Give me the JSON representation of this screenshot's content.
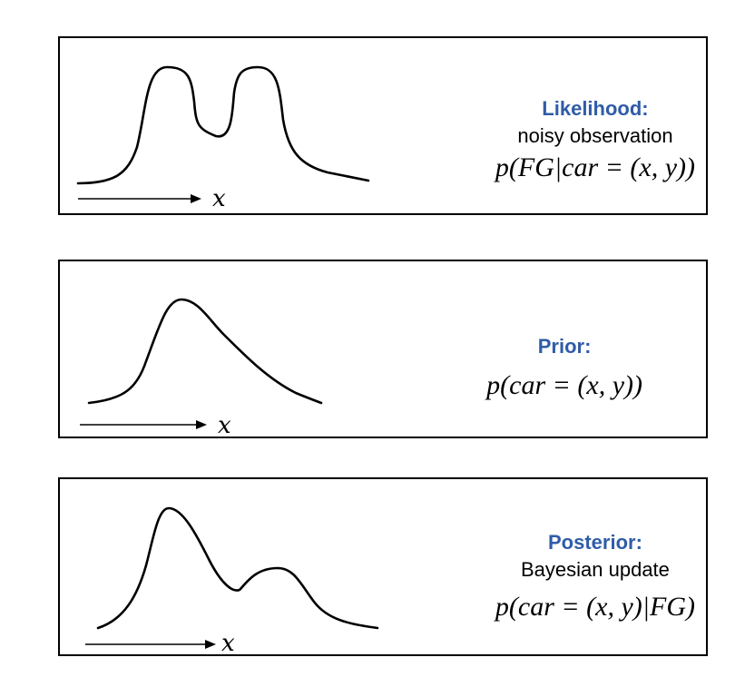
{
  "panels": [
    {
      "title": "Likelihood:",
      "subtitle": "noisy observation",
      "formula": "p(FG|car = (x, y))",
      "axis_label": "x"
    },
    {
      "title": "Prior:",
      "subtitle": "",
      "formula": "p(car = (x, y))",
      "axis_label": "x"
    },
    {
      "title": "Posterior:",
      "subtitle": "Bayesian update",
      "formula": "p(car = (x, y)|FG)",
      "axis_label": "x"
    }
  ],
  "colors": {
    "title": "#2f5ca8",
    "stroke": "#000000",
    "background": "#ffffff"
  }
}
